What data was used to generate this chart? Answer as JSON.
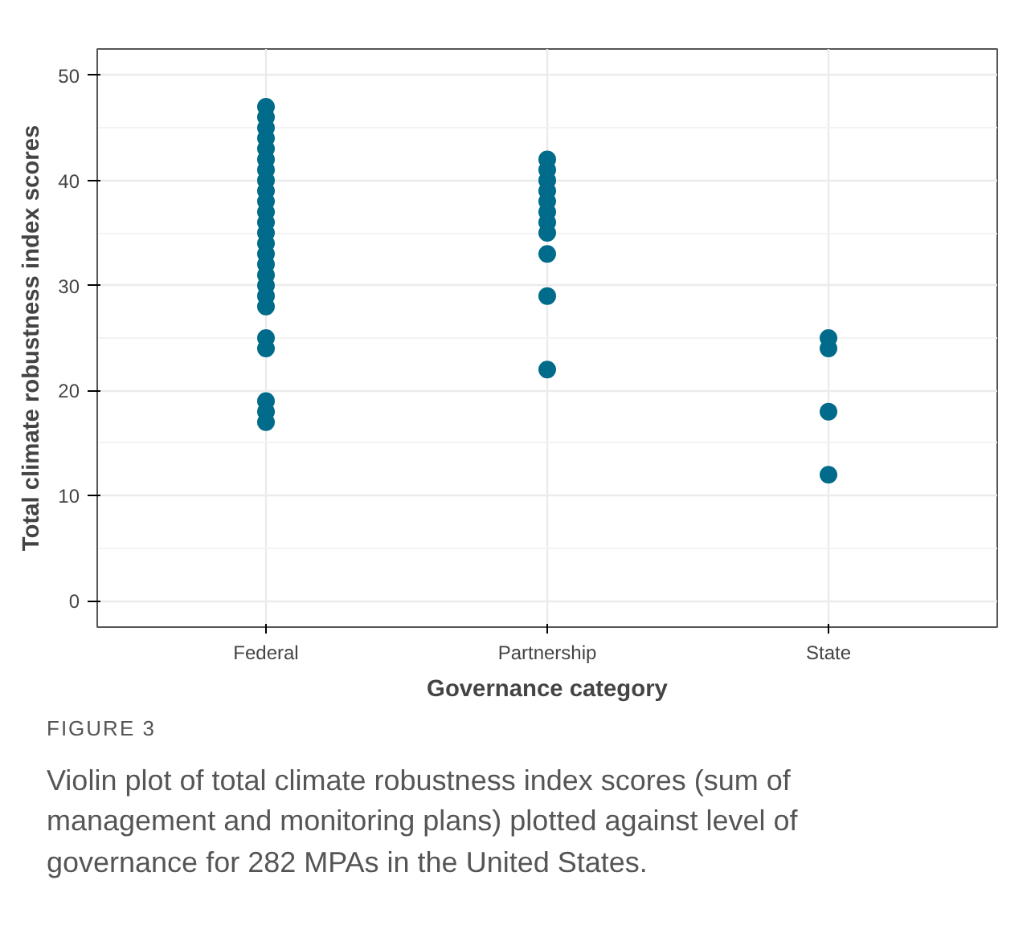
{
  "chart_data": {
    "type": "scatter",
    "xlabel": "Governance category",
    "ylabel": "Total climate robustness index scores",
    "categories": [
      "Federal",
      "Partnership",
      "State"
    ],
    "ylim": [
      -2.5,
      52.5
    ],
    "yticks": [
      0,
      10,
      20,
      30,
      40,
      50
    ],
    "grid": true,
    "marker": "circle",
    "series": [
      {
        "color": "#006b8a",
        "x": [
          "Federal",
          "Federal",
          "Federal",
          "Federal",
          "Federal",
          "Federal",
          "Federal",
          "Federal",
          "Federal",
          "Federal",
          "Federal",
          "Federal",
          "Federal",
          "Federal",
          "Federal",
          "Federal",
          "Federal",
          "Federal",
          "Federal",
          "Federal",
          "Federal",
          "Federal",
          "Federal",
          "Federal",
          "Federal"
        ],
        "values": [
          47,
          46,
          45,
          44,
          43,
          42,
          41,
          40,
          39,
          38,
          37,
          36,
          35,
          34,
          33,
          32,
          31,
          30,
          29,
          28,
          25,
          24,
          19,
          18,
          17
        ]
      },
      {
        "color": "#006b8a",
        "x": [
          "Partnership",
          "Partnership",
          "Partnership",
          "Partnership",
          "Partnership",
          "Partnership",
          "Partnership",
          "Partnership",
          "Partnership",
          "Partnership",
          "Partnership"
        ],
        "values": [
          42,
          41,
          40,
          39,
          38,
          37,
          36,
          35,
          33,
          29,
          22
        ]
      },
      {
        "color": "#006b8a",
        "x": [
          "State",
          "State",
          "State",
          "State"
        ],
        "values": [
          25,
          24,
          18,
          12
        ]
      }
    ],
    "annotations": [
      "FIGURE 3",
      "Violin plot of total climate robustness index scores (sum of management and monitoring plans) plotted against level of governance for 282 MPAs in the United States."
    ]
  }
}
